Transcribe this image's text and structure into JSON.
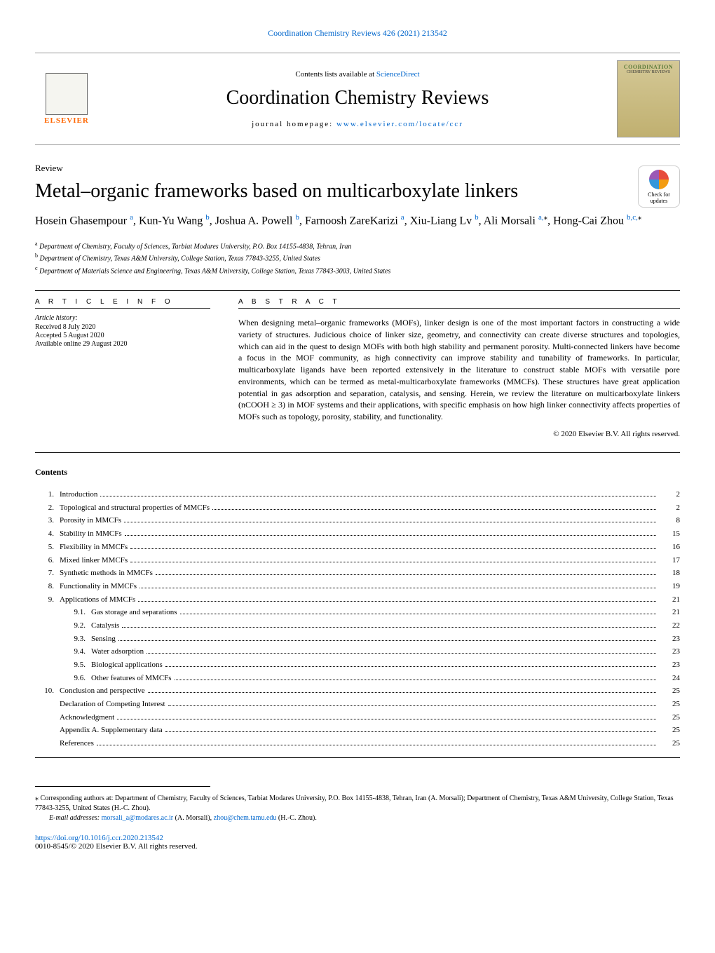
{
  "journal_ref": "Coordination Chemistry Reviews 426 (2021) 213542",
  "header": {
    "contents_text": "Contents lists available at ",
    "sciencedirect": "ScienceDirect",
    "journal_name": "Coordination Chemistry Reviews",
    "homepage_label": "journal homepage: ",
    "homepage_url": "www.elsevier.com/locate/ccr",
    "elsevier": "ELSEVIER",
    "cover_title": "COORDINATION",
    "cover_sub": "CHEMISTRY REVIEWS"
  },
  "article": {
    "type": "Review",
    "title": "Metal–organic frameworks based on multicarboxylate linkers",
    "check_updates": "Check for updates",
    "authors_line1": "Hosein Ghasempour ",
    "auth1_sup": "a",
    "auth2": ", Kun-Yu Wang ",
    "auth2_sup": "b",
    "auth3": ", Joshua A. Powell ",
    "auth3_sup": "b",
    "auth4": ", Farnoosh ZareKarizi ",
    "auth4_sup": "a",
    "auth5": ", Xiu-Liang Lv ",
    "auth5_sup": "b",
    "auth6": ", Ali Morsali ",
    "auth6_sup": "a,",
    "auth7": ", Hong-Cai Zhou ",
    "auth7_sup": "b,c,",
    "star": "⁎"
  },
  "affiliations": {
    "a": "Department of Chemistry, Faculty of Sciences, Tarbiat Modares University, P.O. Box 14155-4838, Tehran, Iran",
    "b": "Department of Chemistry, Texas A&M University, College Station, Texas 77843-3255, United States",
    "c": "Department of Materials Science and Engineering, Texas A&M University, College Station, Texas 77843-3003, United States"
  },
  "info": {
    "heading": "A R T I C L E   I N F O",
    "history_label": "Article history:",
    "received": "Received 8 July 2020",
    "accepted": "Accepted 5 August 2020",
    "online": "Available online 29 August 2020"
  },
  "abstract": {
    "heading": "A B S T R A C T",
    "text": "When designing metal–organic frameworks (MOFs), linker design is one of the most important factors in constructing a wide variety of structures. Judicious choice of linker size, geometry, and connectivity can create diverse structures and topologies, which can aid in the quest to design MOFs with both high stability and permanent porosity. Multi-connected linkers have become a focus in the MOF community, as high connectivity can improve stability and tunability of frameworks. In particular, multicarboxylate ligands have been reported extensively in the literature to construct stable MOFs with versatile pore environments, which can be termed as metal-multicarboxylate frameworks (MMCFs). These structures have great application potential in gas adsorption and separation, catalysis, and sensing. Herein, we review the literature on multicarboxylate linkers (nCOOH ≥ 3) in MOF systems and their applications, with specific emphasis on how high linker connectivity affects properties of MOFs such as topology, porosity, stability, and functionality.",
    "copyright": "© 2020 Elsevier B.V. All rights reserved."
  },
  "contents": {
    "heading": "Contents",
    "items": [
      {
        "num": "1.",
        "title": "Introduction",
        "page": "2"
      },
      {
        "num": "2.",
        "title": "Topological and structural properties of MMCFs",
        "page": "2"
      },
      {
        "num": "3.",
        "title": "Porosity in MMCFs",
        "page": "8"
      },
      {
        "num": "4.",
        "title": "Stability in MMCFs",
        "page": "15"
      },
      {
        "num": "5.",
        "title": "Flexibility in MMCFs",
        "page": "16"
      },
      {
        "num": "6.",
        "title": "Mixed linker MMCFs",
        "page": "17"
      },
      {
        "num": "7.",
        "title": "Synthetic methods in MMCFs",
        "page": "18"
      },
      {
        "num": "8.",
        "title": "Functionality in MMCFs",
        "page": "19"
      },
      {
        "num": "9.",
        "title": "Applications of MMCFs",
        "page": "21"
      }
    ],
    "subitems": [
      {
        "num": "9.1.",
        "title": "Gas storage and separations",
        "page": "21"
      },
      {
        "num": "9.2.",
        "title": "Catalysis",
        "page": "22"
      },
      {
        "num": "9.3.",
        "title": "Sensing",
        "page": "23"
      },
      {
        "num": "9.4.",
        "title": "Water adsorption",
        "page": "23"
      },
      {
        "num": "9.5.",
        "title": "Biological applications",
        "page": "23"
      },
      {
        "num": "9.6.",
        "title": "Other features of MMCFs",
        "page": "24"
      }
    ],
    "items2": [
      {
        "num": "10.",
        "title": "Conclusion and perspective",
        "page": "25"
      }
    ],
    "extras": [
      {
        "title": "Declaration of Competing Interest",
        "page": "25"
      },
      {
        "title": "Acknowledgment",
        "page": "25"
      },
      {
        "title": "Appendix A.   Supplementary data",
        "page": "25"
      },
      {
        "title": "References",
        "page": "25"
      }
    ]
  },
  "footer": {
    "corresponding": "⁎ Corresponding authors at: Department of Chemistry, Faculty of Sciences, Tarbiat Modares University, P.O. Box 14155-4838, Tehran, Iran (A. Morsali); Department of Chemistry, Texas A&M University, College Station, Texas 77843-3255, United States (H.-C. Zhou).",
    "email_label": "E-mail addresses: ",
    "email1": "morsali_a@modares.ac.ir",
    "email1_name": " (A. Morsali), ",
    "email2": "zhou@chem.tamu.edu",
    "email2_name": " (H.-C. Zhou).",
    "doi": "https://doi.org/10.1016/j.ccr.2020.213542",
    "copyright": "0010-8545/© 2020 Elsevier B.V. All rights reserved."
  }
}
